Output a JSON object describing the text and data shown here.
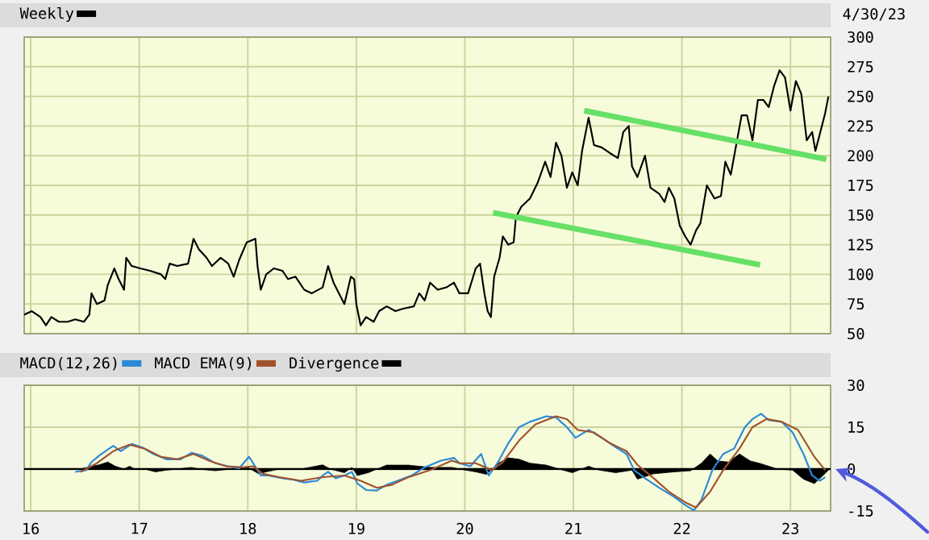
{
  "chart_data": [
    {
      "type": "line",
      "subtitle": "4/30/23",
      "xlim": [
        2015.94,
        2023.37
      ],
      "ylim": [
        50,
        300
      ],
      "xticks": [
        {
          "value": 2016,
          "label": null
        },
        {
          "value": 2017,
          "label": null
        },
        {
          "value": 2018,
          "label": null
        },
        {
          "value": 2019,
          "label": null
        },
        {
          "value": 2020,
          "label": null
        },
        {
          "value": 2021,
          "label": null
        },
        {
          "value": 2022,
          "label": null
        },
        {
          "value": 2023,
          "label": null
        }
      ],
      "yticks": [
        50,
        75,
        100,
        125,
        150,
        175,
        200,
        225,
        250,
        275,
        300
      ],
      "tick_labels": "y",
      "grid": true,
      "legend": "top left",
      "series": [
        {
          "name": "Weekly",
          "color": "#000000",
          "x": [
            2015.94,
            2016.01,
            2016.09,
            2016.14,
            2016.19,
            2016.26,
            2016.34,
            2016.41,
            2016.49,
            2016.54,
            2016.56,
            2016.61,
            2016.68,
            2016.71,
            2016.77,
            2016.81,
            2016.86,
            2016.88,
            2016.93,
            2017.01,
            2017.1,
            2017.2,
            2017.24,
            2017.28,
            2017.35,
            2017.45,
            2017.5,
            2017.55,
            2017.62,
            2017.67,
            2017.75,
            2017.82,
            2017.87,
            2017.92,
            2017.99,
            2018.07,
            2018.09,
            2018.12,
            2018.17,
            2018.24,
            2018.32,
            2018.37,
            2018.44,
            2018.52,
            2018.59,
            2018.69,
            2018.74,
            2018.79,
            2018.84,
            2018.89,
            2018.95,
            2018.98,
            2019.0,
            2019.04,
            2019.09,
            2019.16,
            2019.21,
            2019.28,
            2019.36,
            2019.43,
            2019.53,
            2019.58,
            2019.63,
            2019.68,
            2019.75,
            2019.83,
            2019.9,
            2019.95,
            2020.03,
            2020.1,
            2020.14,
            2020.18,
            2020.21,
            2020.24,
            2020.27,
            2020.32,
            2020.35,
            2020.4,
            2020.45,
            2020.47,
            2020.52,
            2020.6,
            2020.67,
            2020.74,
            2020.79,
            2020.84,
            2020.89,
            2020.94,
            2020.99,
            2021.04,
            2021.08,
            2021.14,
            2021.19,
            2021.26,
            2021.34,
            2021.41,
            2021.46,
            2021.51,
            2021.54,
            2021.59,
            2021.66,
            2021.71,
            2021.79,
            2021.84,
            2021.88,
            2021.93,
            2021.98,
            2022.03,
            2022.08,
            2022.13,
            2022.17,
            2022.23,
            2022.3,
            2022.36,
            2022.4,
            2022.45,
            2022.5,
            2022.55,
            2022.6,
            2022.65,
            2022.7,
            2022.75,
            2022.8,
            2022.85,
            2022.9,
            2022.95,
            2023.0,
            2023.05,
            2023.1,
            2023.15,
            2023.2,
            2023.23,
            2023.27,
            2023.32,
            2023.35
          ],
          "values": [
            66,
            69,
            64,
            57,
            64,
            60,
            60,
            62,
            60,
            66,
            84,
            75,
            78,
            91,
            105,
            96,
            87,
            114,
            107,
            105,
            103,
            100,
            96,
            109,
            107,
            109,
            130,
            121,
            114,
            107,
            114,
            109,
            98,
            112,
            127,
            130,
            107,
            87,
            100,
            105,
            103,
            96,
            98,
            87,
            84,
            89,
            107,
            93,
            84,
            75,
            98,
            96,
            75,
            57,
            64,
            60,
            69,
            73,
            69,
            71,
            73,
            84,
            78,
            93,
            87,
            89,
            93,
            84,
            84,
            105,
            109,
            84,
            69,
            64,
            98,
            114,
            132,
            125,
            127,
            148,
            157,
            164,
            177,
            195,
            182,
            211,
            200,
            173,
            186,
            175,
            204,
            232,
            209,
            207,
            202,
            198,
            220,
            225,
            191,
            182,
            200,
            173,
            168,
            161,
            173,
            164,
            141,
            132,
            125,
            137,
            143,
            175,
            164,
            166,
            195,
            184,
            209,
            234,
            234,
            213,
            247,
            247,
            241,
            259,
            272,
            266,
            238,
            263,
            252,
            213,
            220,
            204,
            218,
            236,
            250
          ]
        },
        {
          "type": "line",
          "color": "#66e066",
          "x": [
            2020.26,
            2022.72
          ],
          "values": [
            152,
            108
          ]
        },
        {
          "type": "line",
          "color": "#66e066",
          "x": [
            2021.1,
            2023.33
          ],
          "values": [
            238,
            197
          ]
        }
      ]
    },
    {
      "type": "line",
      "xlim": [
        2015.94,
        2023.37
      ],
      "ylim": [
        -15,
        30
      ],
      "xticks": [
        {
          "value": 2016,
          "label": "16"
        },
        {
          "value": 2017,
          "label": "17"
        },
        {
          "value": 2018,
          "label": "18"
        },
        {
          "value": 2019,
          "label": "19"
        },
        {
          "value": 2020,
          "label": "20"
        },
        {
          "value": 2021,
          "label": "21"
        },
        {
          "value": 2022,
          "label": "22"
        },
        {
          "value": 2023,
          "label": "23"
        }
      ],
      "yticks": [
        -15,
        0,
        15,
        30
      ],
      "grid": true,
      "legend": "top left",
      "ref_lines": [
        {
          "axis": "y",
          "value": 0,
          "color": "#000000"
        }
      ],
      "series": [
        {
          "name": "MACD(12,26)",
          "color": "#2a8ad8",
          "x": [
            2016.41,
            2016.51,
            2016.56,
            2016.63,
            2016.76,
            2016.83,
            2016.93,
            2017.03,
            2017.13,
            2017.25,
            2017.38,
            2017.48,
            2017.58,
            2017.7,
            2017.82,
            2017.92,
            2018.01,
            2018.05,
            2018.12,
            2018.19,
            2018.32,
            2018.42,
            2018.52,
            2018.64,
            2018.69,
            2018.74,
            2018.81,
            2018.89,
            2018.96,
            2019.01,
            2019.09,
            2019.19,
            2019.28,
            2019.38,
            2019.51,
            2019.63,
            2019.78,
            2019.9,
            2019.95,
            2020.05,
            2020.15,
            2020.22,
            2020.3,
            2020.4,
            2020.5,
            2020.6,
            2020.75,
            2020.84,
            2020.94,
            2021.02,
            2021.14,
            2021.26,
            2021.41,
            2021.49,
            2021.56,
            2021.66,
            2021.79,
            2021.93,
            2022.03,
            2022.11,
            2022.18,
            2022.28,
            2022.38,
            2022.48,
            2022.58,
            2022.65,
            2022.73,
            2022.8,
            2022.92,
            2023.02,
            2023.12,
            2023.2,
            2023.27,
            2023.32
          ],
          "values": [
            -1.0,
            -0.4,
            2.5,
            4.8,
            8.3,
            6.4,
            9.0,
            7.7,
            5.4,
            3.5,
            3.5,
            5.8,
            4.8,
            2.1,
            1.0,
            0.2,
            4.4,
            2.1,
            -2.3,
            -2.3,
            -3.3,
            -3.8,
            -4.8,
            -4.2,
            -2.3,
            -1.0,
            -3.3,
            -2.3,
            -1.0,
            -5.2,
            -7.5,
            -7.7,
            -5.6,
            -4.2,
            -2.3,
            0.6,
            3.0,
            4.0,
            2.1,
            1.0,
            5.4,
            -2.3,
            2.1,
            9.2,
            15.0,
            16.9,
            18.9,
            18.5,
            15.0,
            11.2,
            14.0,
            11.2,
            7.3,
            5.4,
            -0.4,
            -3.3,
            -6.7,
            -10.0,
            -12.9,
            -14.8,
            -11.0,
            -0.4,
            5.4,
            7.3,
            15.0,
            17.9,
            19.8,
            17.5,
            16.9,
            13.1,
            5.4,
            -2.3,
            -4.2,
            -2.9
          ]
        },
        {
          "name": "MACD EMA(9)",
          "color": "#a0522d",
          "x": [
            2016.46,
            2016.61,
            2016.76,
            2016.91,
            2017.05,
            2017.2,
            2017.35,
            2017.5,
            2017.65,
            2017.8,
            2017.95,
            2018.05,
            2018.14,
            2018.29,
            2018.49,
            2018.69,
            2018.89,
            2019.04,
            2019.19,
            2019.33,
            2019.48,
            2019.68,
            2019.88,
            2019.95,
            2020.1,
            2020.25,
            2020.35,
            2020.5,
            2020.65,
            2020.84,
            2020.94,
            2021.04,
            2021.19,
            2021.34,
            2021.49,
            2021.59,
            2021.74,
            2021.88,
            2022.03,
            2022.13,
            2022.26,
            2022.38,
            2022.53,
            2022.65,
            2022.78,
            2022.92,
            2023.07,
            2023.22,
            2023.32
          ],
          "values": [
            -1.0,
            2.1,
            6.4,
            8.7,
            7.3,
            4.4,
            3.5,
            5.4,
            2.9,
            1.0,
            0.6,
            1.0,
            -1.7,
            -2.9,
            -4.2,
            -2.9,
            -2.3,
            -4.2,
            -6.7,
            -5.6,
            -2.9,
            -0.4,
            3.0,
            2.1,
            2.1,
            -0.4,
            2.5,
            10.2,
            16.0,
            18.9,
            17.9,
            14.0,
            13.1,
            9.2,
            6.4,
            1.5,
            -3.3,
            -8.1,
            -11.9,
            -13.8,
            -8.1,
            -0.4,
            7.3,
            15.0,
            17.9,
            16.9,
            14.0,
            4.4,
            -0.4
          ]
        },
        {
          "name": "Divergence",
          "type": "area",
          "color": "#000000",
          "x": [
            2016.46,
            2016.56,
            2016.63,
            2016.71,
            2016.78,
            2016.86,
            2016.91,
            2016.96,
            2017.05,
            2017.15,
            2017.25,
            2017.35,
            2017.48,
            2017.55,
            2017.7,
            2017.85,
            2018.0,
            2018.1,
            2018.17,
            2018.29,
            2018.49,
            2018.69,
            2018.76,
            2018.89,
            2018.96,
            2019.01,
            2019.11,
            2019.19,
            2019.28,
            2019.48,
            2019.68,
            2019.88,
            2019.95,
            2020.1,
            2020.2,
            2020.3,
            2020.4,
            2020.5,
            2020.6,
            2020.75,
            2020.87,
            2020.99,
            2021.14,
            2021.24,
            2021.39,
            2021.54,
            2021.59,
            2021.74,
            2021.93,
            2022.08,
            2022.18,
            2022.26,
            2022.33,
            2022.43,
            2022.53,
            2022.63,
            2022.73,
            2022.88,
            2023.02,
            2023.12,
            2023.22,
            2023.3,
            2023.35
          ],
          "values": [
            0,
            1.0,
            1.5,
            2.5,
            1.0,
            0,
            1.0,
            0,
            0,
            -1.0,
            -0.4,
            0,
            0.6,
            0,
            -0.6,
            0,
            0.6,
            -1.7,
            -1.0,
            0,
            0,
            1.5,
            0,
            -1.3,
            0.6,
            -2.3,
            -1.3,
            0,
            1.4,
            1.4,
            0.6,
            0.6,
            0,
            -1.0,
            -1.9,
            1.9,
            4.0,
            3.5,
            2.1,
            1.4,
            0,
            -1.3,
            1.0,
            -0.4,
            -1.3,
            -0.4,
            -3.6,
            -1.7,
            -1.0,
            -0.6,
            2.1,
            5.4,
            2.9,
            2.5,
            5.4,
            2.9,
            1.9,
            0,
            -0.4,
            -3.6,
            -5.2,
            -2.3,
            -0.4
          ]
        }
      ]
    }
  ]
}
